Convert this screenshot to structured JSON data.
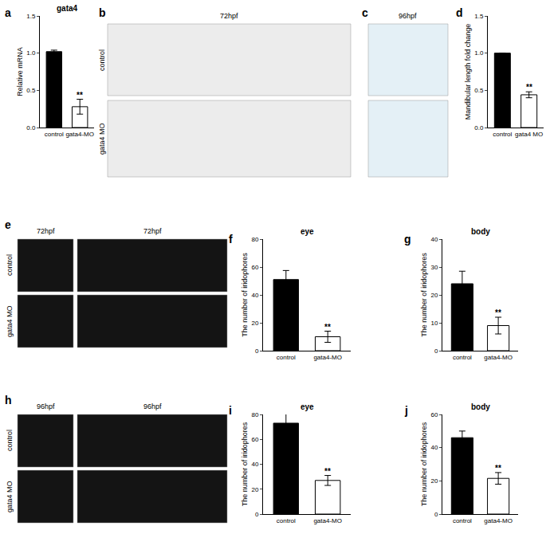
{
  "chart_data": [
    {
      "panel": "a",
      "type": "bar",
      "title": "gata4",
      "ylabel": "Relative mRNA",
      "categories": [
        "control",
        "gata4-MO"
      ],
      "values": [
        1.02,
        0.28
      ],
      "errors": [
        0.02,
        0.1
      ],
      "colors": [
        "#000000",
        "#ffffff"
      ],
      "ylim": [
        0,
        1.5
      ],
      "yticks": [
        {
          "value": 0,
          "label": "0.0"
        },
        {
          "value": 0.5,
          "label": "0.5"
        },
        {
          "value": 1,
          "label": "1.0"
        },
        {
          "value": 1.5,
          "label": "1.5"
        }
      ],
      "annotations": [
        {
          "category": "gata4-MO",
          "text": "**"
        }
      ]
    },
    {
      "panel": "d",
      "type": "bar",
      "ylabel": "Mandibular length fold change",
      "categories": [
        "control",
        "gata4 MO"
      ],
      "values": [
        1.0,
        0.44
      ],
      "errors": [
        0,
        0.04
      ],
      "colors": [
        "#000000",
        "#ffffff"
      ],
      "ylim": [
        0,
        1.5
      ],
      "yticks": [
        {
          "value": 0,
          "label": "0.0"
        },
        {
          "value": 0.5,
          "label": "0.5"
        },
        {
          "value": 1,
          "label": "1.0"
        },
        {
          "value": 1.5,
          "label": "1.5"
        }
      ],
      "annotations": [
        {
          "category": "gata4 MO",
          "text": "**"
        }
      ]
    },
    {
      "panel": "f",
      "type": "bar",
      "title": "eye",
      "ylabel": "The number of iridophores",
      "categories": [
        "control",
        "gata4-MO"
      ],
      "values": [
        51,
        10
      ],
      "errors": [
        6.5,
        4
      ],
      "colors": [
        "#000000",
        "#ffffff"
      ],
      "ylim": [
        0,
        80
      ],
      "yticks": [
        0,
        20,
        40,
        60,
        80
      ],
      "annotations": [
        {
          "category": "gata4-MO",
          "text": "**"
        }
      ]
    },
    {
      "panel": "g",
      "type": "bar",
      "title": "body",
      "ylabel": "The number of iridophores",
      "categories": [
        "control",
        "gata4-MO"
      ],
      "values": [
        24,
        9
      ],
      "errors": [
        4.5,
        3
      ],
      "colors": [
        "#000000",
        "#ffffff"
      ],
      "ylim": [
        0,
        40
      ],
      "yticks": [
        0,
        10,
        20,
        30,
        40
      ],
      "annotations": [
        {
          "category": "gata4-MO",
          "text": "**"
        }
      ]
    },
    {
      "panel": "i",
      "type": "bar",
      "title": "eye",
      "ylabel": "The number of iridophores",
      "categories": [
        "control",
        "gata4-MO"
      ],
      "values": [
        73,
        27
      ],
      "errors": [
        7.5,
        4
      ],
      "colors": [
        "#000000",
        "#ffffff"
      ],
      "ylim": [
        0,
        80
      ],
      "yticks": [
        0,
        20,
        40,
        60,
        80
      ],
      "annotations": [
        {
          "category": "gata4-MO",
          "text": "**"
        }
      ]
    },
    {
      "panel": "j",
      "type": "bar",
      "title": "body",
      "ylabel": "The number of iridophores",
      "categories": [
        "control",
        "gata4-MO"
      ],
      "values": [
        46,
        21.5
      ],
      "errors": [
        4,
        3.5
      ],
      "colors": [
        "#000000",
        "#ffffff"
      ],
      "ylim": [
        0,
        60
      ],
      "yticks": [
        0,
        20,
        40,
        60
      ],
      "annotations": [
        {
          "category": "gata4-MO",
          "text": "**"
        }
      ]
    }
  ],
  "image_panels": [
    {
      "panel": "b",
      "columns": [
        "72hpf"
      ],
      "rows": [
        "control",
        "gata4 MO"
      ]
    },
    {
      "panel": "c",
      "columns": [
        "96hpf"
      ]
    },
    {
      "panel": "e",
      "columns": [
        "72hpf",
        "72hpf"
      ],
      "rows": [
        "control",
        "gata4 MO"
      ]
    },
    {
      "panel": "h",
      "columns": [
        "96hpf",
        "96hpf"
      ],
      "rows": [
        "control",
        "gata4 MO"
      ]
    }
  ]
}
